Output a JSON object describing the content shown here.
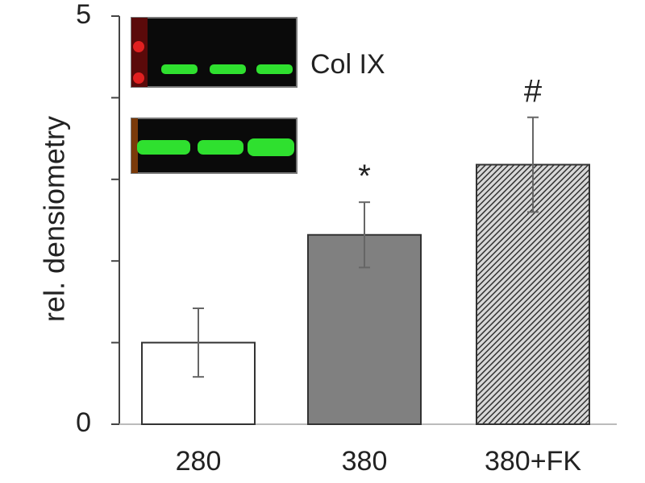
{
  "chart_data": {
    "type": "bar",
    "y_label": "rel. densiometry",
    "categories": [
      "280",
      "380",
      "380+FK"
    ],
    "values": [
      1.0,
      2.32,
      3.18
    ],
    "errors": [
      0.42,
      0.4,
      0.58
    ],
    "colors": [
      "#ffffff",
      "#808080",
      "#6e6e6e"
    ],
    "hatch": [
      false,
      false,
      true
    ],
    "bar_labels": [
      null,
      "*",
      "#"
    ],
    "ylim": [
      0,
      5
    ],
    "yticks": [
      0,
      5
    ],
    "minor_yticks": [
      1,
      2,
      3,
      4
    ],
    "inset_label": "Col IX"
  }
}
